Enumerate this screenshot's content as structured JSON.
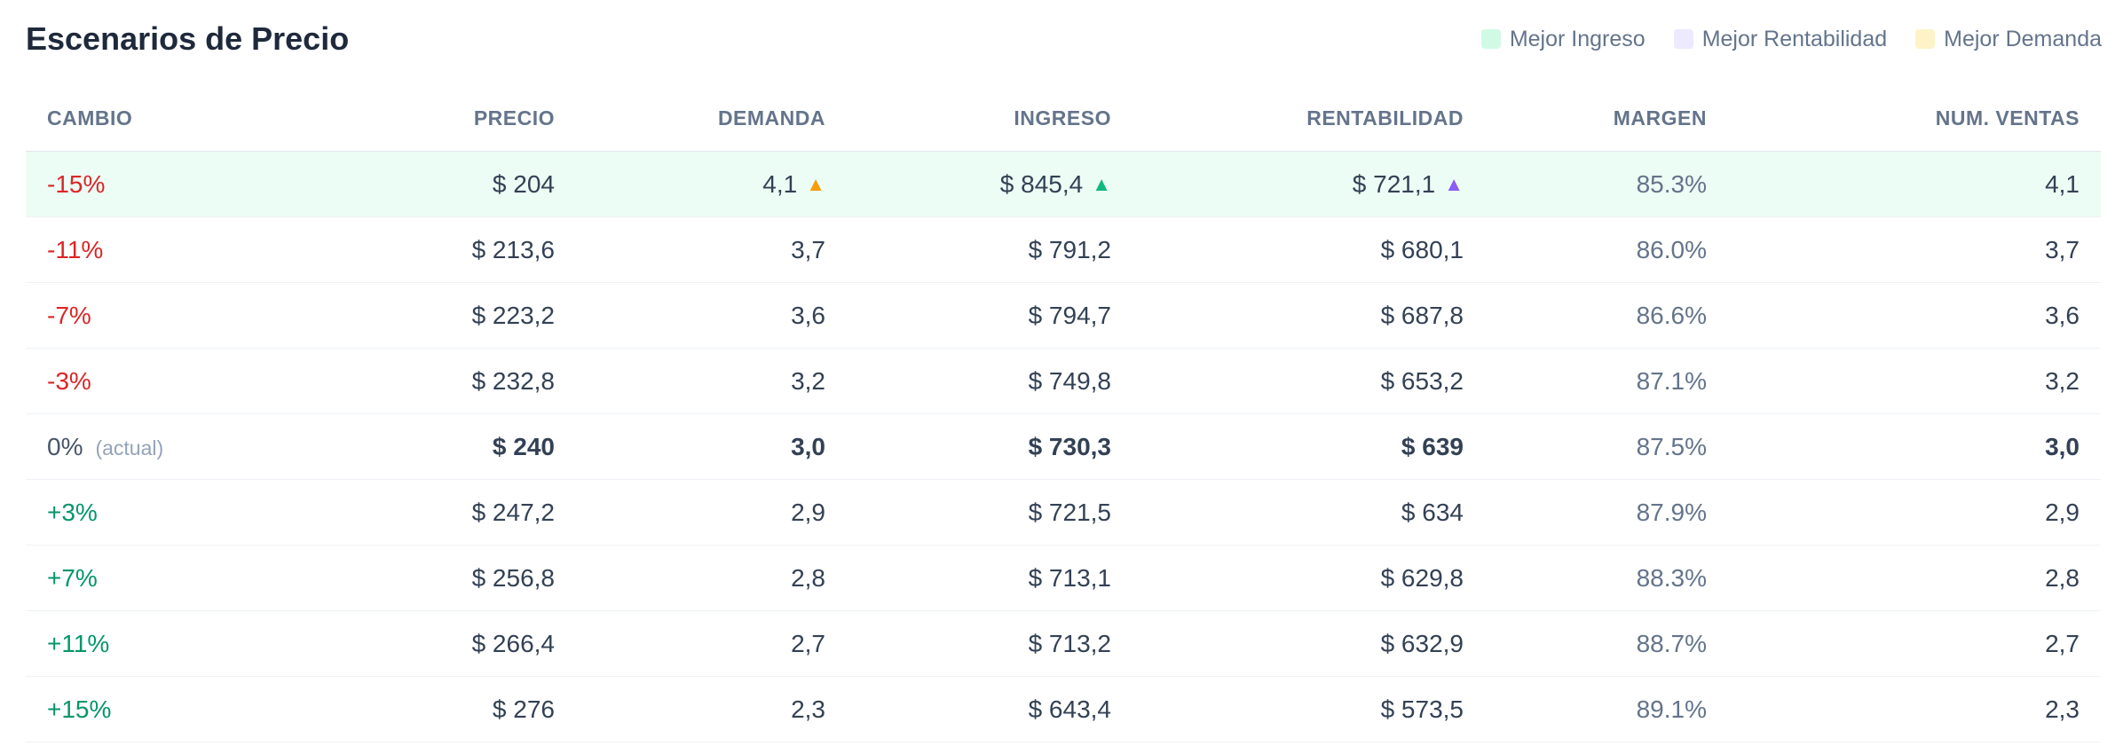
{
  "title": "Escenarios de Precio",
  "legend": [
    {
      "label": "Mejor Ingreso",
      "color": "#d1fae5"
    },
    {
      "label": "Mejor Rentabilidad",
      "color": "#ede9fe"
    },
    {
      "label": "Mejor Demanda",
      "color": "#fef3c7"
    }
  ],
  "columns": [
    "CAMBIO",
    "PRECIO",
    "DEMANDA",
    "INGRESO",
    "RENTABILIDAD",
    "MARGEN",
    "NUM. VENTAS"
  ],
  "current_note": "(actual)",
  "rows": [
    {
      "cambio": "-15%",
      "precio": "$ 204",
      "demanda": "4,1",
      "ingreso": "$ 845,4",
      "rentabilidad": "$ 721,1",
      "margen": "85.3%",
      "ventas": "4,1"
    },
    {
      "cambio": "-11%",
      "precio": "$ 213,6",
      "demanda": "3,7",
      "ingreso": "$ 791,2",
      "rentabilidad": "$ 680,1",
      "margen": "86.0%",
      "ventas": "3,7"
    },
    {
      "cambio": "-7%",
      "precio": "$ 223,2",
      "demanda": "3,6",
      "ingreso": "$ 794,7",
      "rentabilidad": "$ 687,8",
      "margen": "86.6%",
      "ventas": "3,6"
    },
    {
      "cambio": "-3%",
      "precio": "$ 232,8",
      "demanda": "3,2",
      "ingreso": "$ 749,8",
      "rentabilidad": "$ 653,2",
      "margen": "87.1%",
      "ventas": "3,2"
    },
    {
      "cambio": "0%",
      "precio": "$ 240",
      "demanda": "3,0",
      "ingreso": "$ 730,3",
      "rentabilidad": "$ 639",
      "margen": "87.5%",
      "ventas": "3,0"
    },
    {
      "cambio": "+3%",
      "precio": "$ 247,2",
      "demanda": "2,9",
      "ingreso": "$ 721,5",
      "rentabilidad": "$ 634",
      "margen": "87.9%",
      "ventas": "2,9"
    },
    {
      "cambio": "+7%",
      "precio": "$ 256,8",
      "demanda": "2,8",
      "ingreso": "$ 713,1",
      "rentabilidad": "$ 629,8",
      "margen": "88.3%",
      "ventas": "2,8"
    },
    {
      "cambio": "+11%",
      "precio": "$ 266,4",
      "demanda": "2,7",
      "ingreso": "$ 713,2",
      "rentabilidad": "$ 632,9",
      "margen": "88.7%",
      "ventas": "2,7"
    },
    {
      "cambio": "+15%",
      "precio": "$ 276",
      "demanda": "2,3",
      "ingreso": "$ 643,4",
      "rentabilidad": "$ 573,5",
      "margen": "89.1%",
      "ventas": "2,3"
    }
  ],
  "indicator_icons": {
    "demanda": "triangle-up-orange",
    "ingreso": "triangle-up-green",
    "rentabilidad": "triangle-up-purple"
  }
}
